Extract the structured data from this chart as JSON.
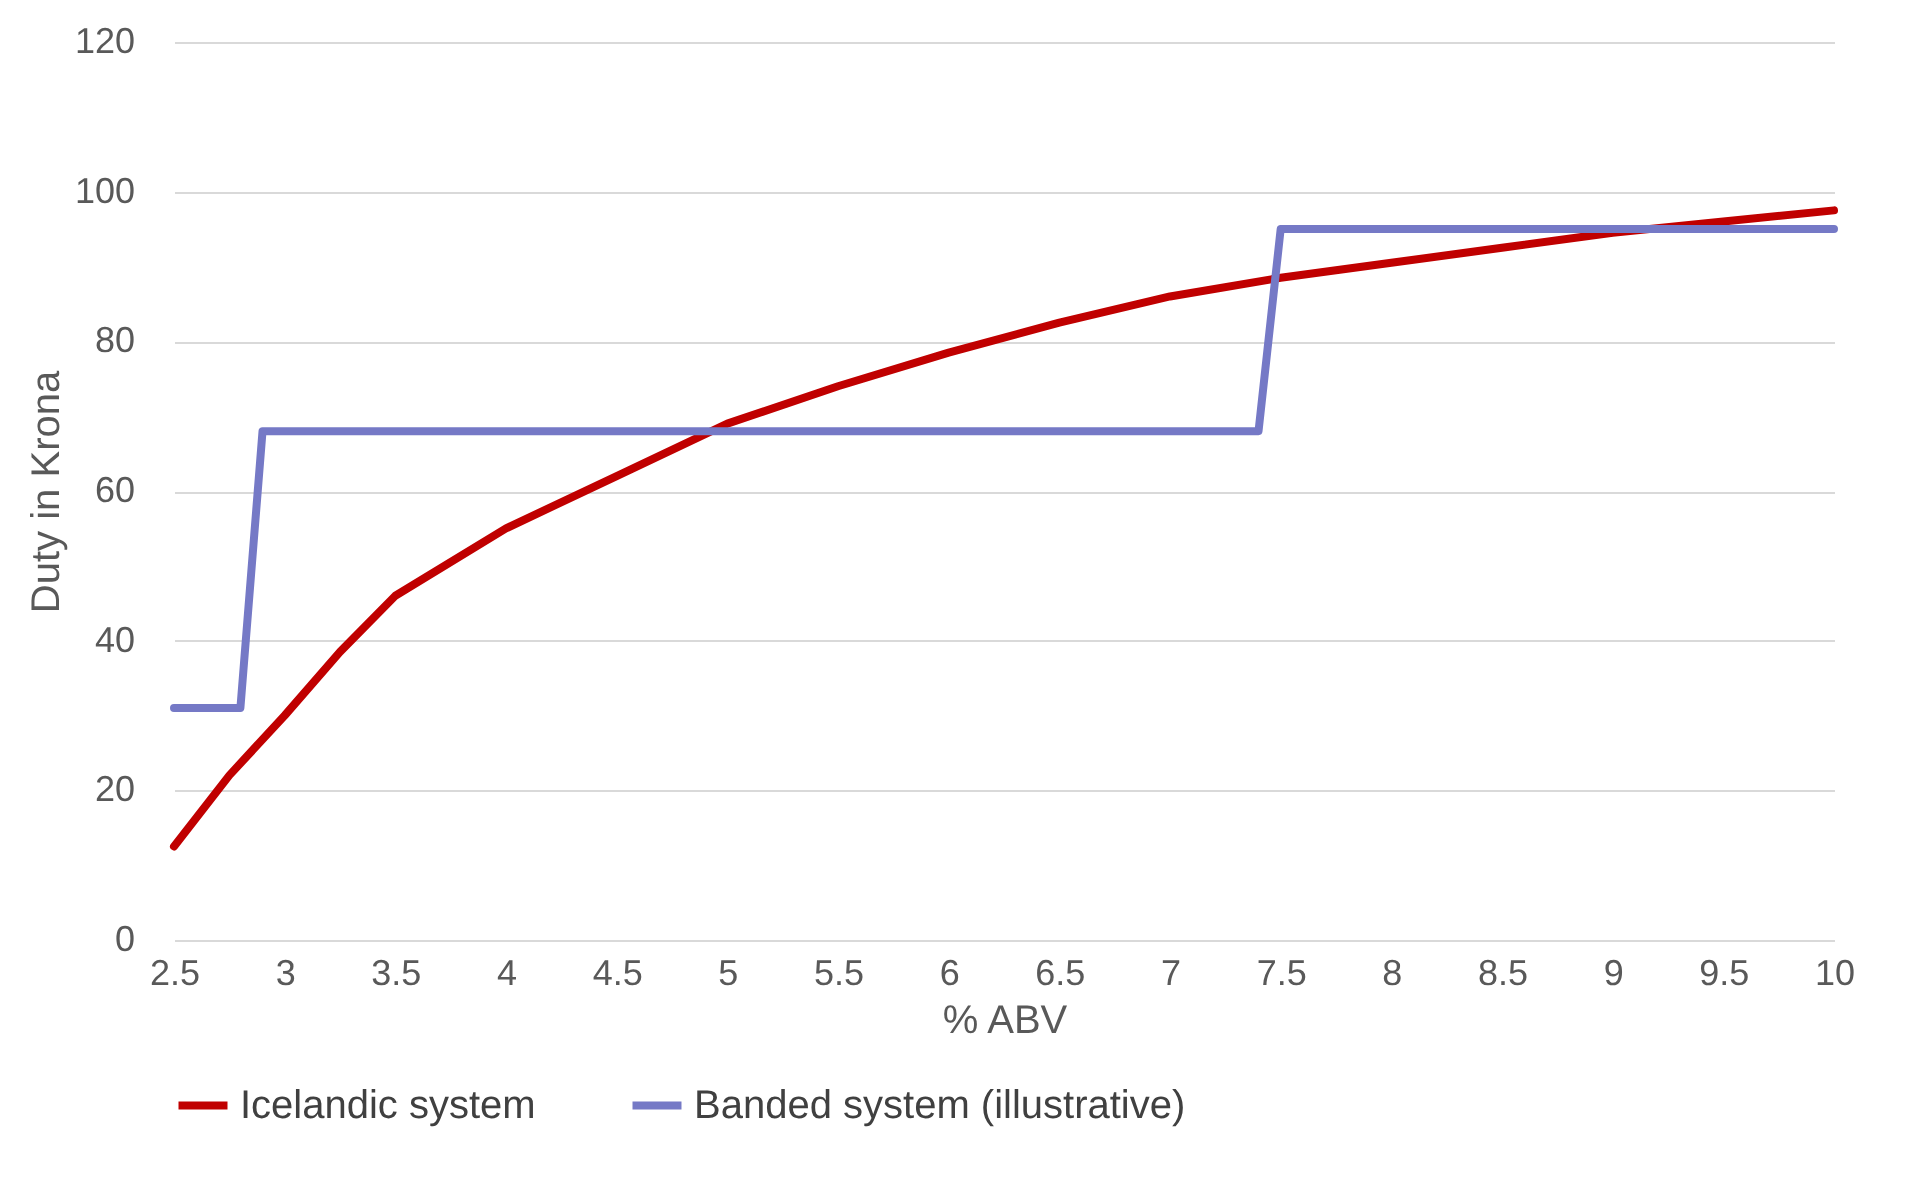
{
  "chart_data": {
    "type": "line",
    "xlabel": "% ABV",
    "ylabel": "Duty in Krona",
    "xlim": [
      2.5,
      10
    ],
    "xticks": [
      2.5,
      3,
      3.5,
      4,
      4.5,
      5,
      5.5,
      6,
      6.5,
      7,
      7.5,
      8,
      8.5,
      9,
      9.5,
      10
    ],
    "ylim": [
      0,
      120
    ],
    "yticks": [
      0,
      20,
      40,
      60,
      80,
      100,
      120
    ],
    "grid": "y",
    "legend": "bottom",
    "marker": "none",
    "line_style": "solid",
    "series": [
      {
        "name": "Icelandic system",
        "color": "#c00000",
        "x": [
          2.5,
          2.75,
          3,
          3.25,
          3.5,
          4,
          4.5,
          5,
          5.5,
          6,
          6.5,
          7,
          7.5,
          8,
          8.5,
          9,
          9.5,
          10
        ],
        "values": [
          12.5,
          22,
          30,
          38.5,
          46,
          55,
          62,
          69,
          74,
          78.5,
          82.5,
          86,
          88.5,
          90.5,
          92.5,
          94.5,
          96,
          97.5
        ]
      },
      {
        "name": "Banded system (illustrative)",
        "color": "#7579c6",
        "x": [
          2.5,
          2.8,
          2.9,
          7.4,
          7.5,
          10
        ],
        "values": [
          31,
          31,
          68,
          68,
          95,
          95
        ]
      }
    ]
  }
}
